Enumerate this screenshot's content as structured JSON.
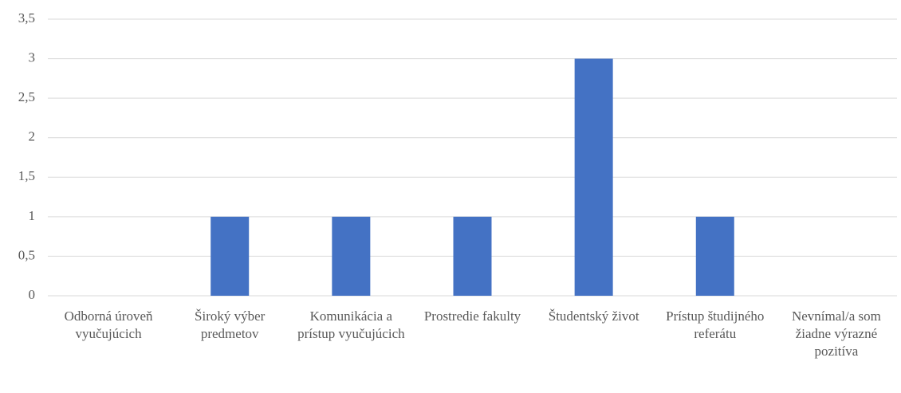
{
  "chart_data": {
    "type": "bar",
    "categories": [
      "Odborná úroveň vyučujúcich",
      "Široký výber predmetov",
      "Komunikácia a prístup vyučujúcich",
      "Prostredie fakulty",
      "Študentský život",
      "Prístup študijného referátu",
      "Nevnímal/a som žiadne výrazné pozitíva"
    ],
    "values": [
      0,
      1,
      1,
      1,
      3,
      1,
      0
    ],
    "color": "#4472c4",
    "ylim": [
      0,
      3.5
    ],
    "yticks": [
      0,
      {
        "value": 0.5,
        "label": "0,5"
      },
      1,
      {
        "value": 1.5,
        "label": "1,5"
      },
      2,
      {
        "value": 2.5,
        "label": "2,5"
      },
      3,
      {
        "value": 3.5,
        "label": "3,5"
      }
    ],
    "grid": true
  }
}
